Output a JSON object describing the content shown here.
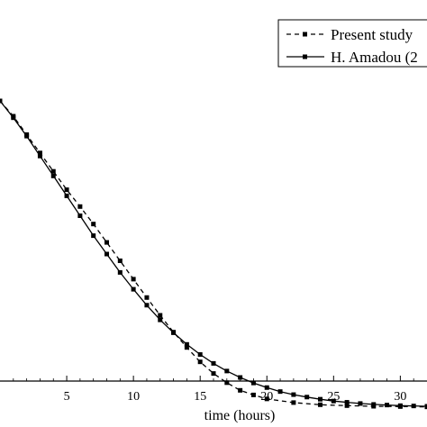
{
  "chart_data": {
    "type": "line",
    "title": "",
    "xlabel": "time (hours)",
    "ylabel": "",
    "xlim": [
      0,
      32
    ],
    "ylim": [
      0,
      1
    ],
    "x_ticks": [
      5,
      10,
      15,
      20,
      25,
      30
    ],
    "grid": false,
    "legend": {
      "placement": "top-right"
    },
    "series": [
      {
        "name": "Present study",
        "style": "dashed",
        "marker": "square",
        "color": "#000000",
        "x": [
          0,
          1,
          2,
          3,
          4,
          5,
          6,
          7,
          8,
          9,
          10,
          11,
          12,
          13,
          14,
          15,
          16,
          17,
          18,
          19,
          20,
          22,
          24,
          26,
          28,
          30,
          32
        ],
        "y": [
          1.0,
          0.95,
          0.89,
          0.83,
          0.77,
          0.71,
          0.655,
          0.598,
          0.538,
          0.478,
          0.418,
          0.358,
          0.3,
          0.245,
          0.195,
          0.148,
          0.11,
          0.08,
          0.055,
          0.04,
          0.027,
          0.015,
          0.008,
          0.005,
          0.003,
          0.002,
          0.001
        ]
      },
      {
        "name": "H. Amadou (2",
        "style": "solid",
        "marker": "square",
        "color": "#000000",
        "x": [
          0,
          1,
          2,
          3,
          4,
          5,
          6,
          7,
          8,
          9,
          10,
          11,
          12,
          13,
          14,
          15,
          16,
          17,
          18,
          19,
          20,
          21,
          22,
          23,
          24,
          25,
          26,
          27,
          28,
          29,
          30,
          31,
          32
        ],
        "y": [
          1.0,
          0.945,
          0.885,
          0.82,
          0.755,
          0.69,
          0.625,
          0.56,
          0.5,
          0.44,
          0.385,
          0.333,
          0.285,
          0.243,
          0.205,
          0.172,
          0.143,
          0.118,
          0.097,
          0.079,
          0.064,
          0.051,
          0.041,
          0.033,
          0.026,
          0.02,
          0.016,
          0.012,
          0.009,
          0.007,
          0.005,
          0.004,
          0.003
        ]
      }
    ]
  }
}
